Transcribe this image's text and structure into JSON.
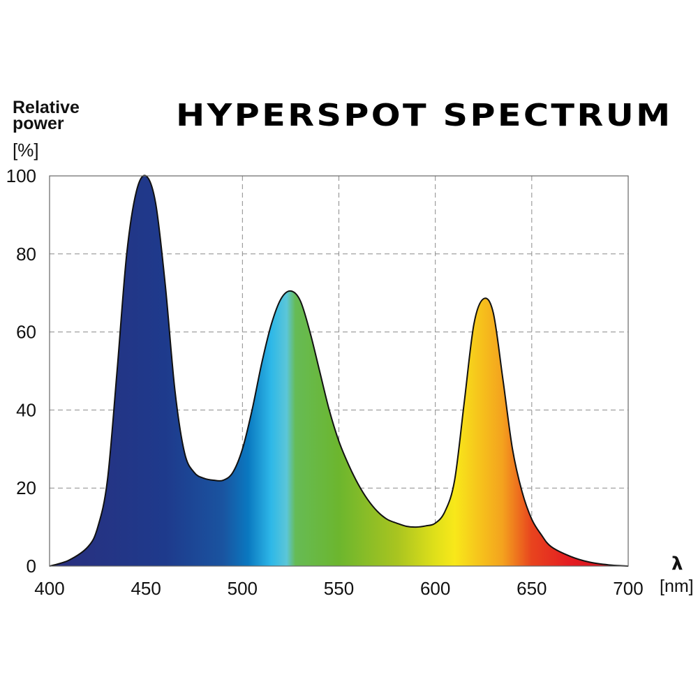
{
  "chart_data": {
    "type": "area",
    "title": "HYPERSPOT SPECTRUM",
    "ylabel": "Relative power",
    "ylabel_line1": "Relative",
    "ylabel_line2": "power",
    "yunit": "[%]",
    "xlabel": "λ",
    "xunit": "[nm]",
    "xlim": [
      400,
      700
    ],
    "ylim": [
      0,
      100
    ],
    "xticks": [
      400,
      450,
      500,
      550,
      600,
      650,
      700
    ],
    "yticks": [
      0,
      20,
      40,
      60,
      80,
      100
    ],
    "xtick_labels": [
      "400",
      "450",
      "500",
      "550",
      "600",
      "650",
      "700"
    ],
    "ytick_labels": [
      "0",
      "20",
      "40",
      "60",
      "80",
      "100"
    ],
    "grid": true,
    "fill": "visible-spectrum-gradient",
    "x": [
      400,
      410,
      420,
      425,
      430,
      435,
      440,
      445,
      450,
      455,
      460,
      465,
      470,
      475,
      480,
      485,
      490,
      495,
      500,
      505,
      510,
      515,
      520,
      525,
      530,
      535,
      540,
      545,
      550,
      555,
      560,
      565,
      570,
      575,
      580,
      585,
      590,
      595,
      600,
      605,
      610,
      615,
      620,
      625,
      630,
      635,
      640,
      645,
      650,
      655,
      660,
      670,
      680,
      690,
      700
    ],
    "y": [
      0,
      1.5,
      5,
      10,
      22,
      50,
      80,
      96,
      100,
      93,
      72,
      45,
      29,
      24,
      22.5,
      22,
      22,
      24,
      30,
      40,
      52,
      62,
      68.5,
      70.5,
      68,
      60,
      50,
      40,
      32,
      26,
      21,
      17,
      14,
      12,
      11,
      10.2,
      10,
      10.3,
      11,
      14,
      22,
      42,
      62,
      68.5,
      65,
      48,
      30,
      19,
      12,
      8,
      5,
      2.5,
      1,
      0.3,
      0
    ]
  }
}
